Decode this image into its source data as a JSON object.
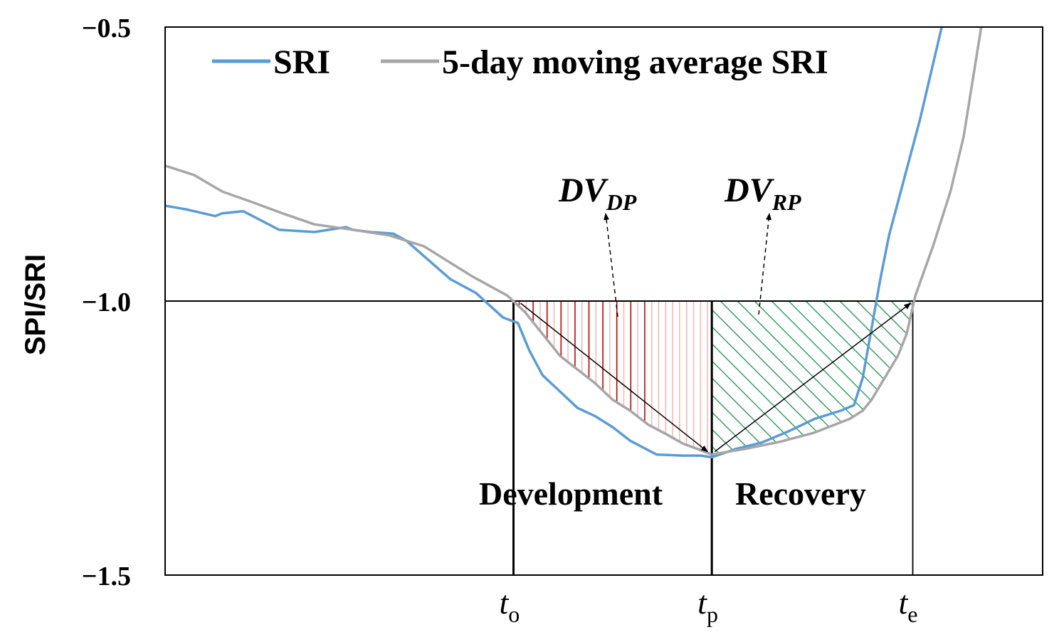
{
  "chart_data": {
    "type": "line",
    "ylabel": "SPI/SRI",
    "xlabel": "",
    "ylim": [
      -1.5,
      -0.5
    ],
    "xlim": [
      0,
      100
    ],
    "yticks": [
      {
        "value": -0.5,
        "label": "−0.5"
      },
      {
        "value": -1.0,
        "label": "−1.0"
      },
      {
        "value": -1.5,
        "label": "−1.5"
      }
    ],
    "xticks": [
      {
        "value": 39.7,
        "main": "t",
        "sub": "o"
      },
      {
        "value": 62.3,
        "main": "t",
        "sub": "p"
      },
      {
        "value": 85.2,
        "main": "t",
        "sub": "e"
      }
    ],
    "threshold": -1.0,
    "series": [
      {
        "name": "SRI",
        "color": "#5b9bd5",
        "x": [
          0,
          2.5,
          5.7,
          6.5,
          8.9,
          13,
          17,
          20.6,
          21.4,
          23.4,
          26,
          27.5,
          30,
          32.5,
          35.4,
          38.5,
          40.2,
          41.5,
          43,
          45,
          47,
          49,
          51,
          53,
          56,
          59,
          61,
          62.3,
          65,
          68,
          71,
          74,
          77,
          78.5,
          79.5,
          80.5,
          81.5,
          82.5,
          84,
          86,
          88.5
        ],
        "values": [
          -0.826,
          -0.833,
          -0.845,
          -0.84,
          -0.836,
          -0.87,
          -0.874,
          -0.865,
          -0.87,
          -0.874,
          -0.877,
          -0.89,
          -0.925,
          -0.96,
          -0.985,
          -1.03,
          -1.04,
          -1.09,
          -1.135,
          -1.165,
          -1.195,
          -1.21,
          -1.23,
          -1.255,
          -1.28,
          -1.282,
          -1.282,
          -1.285,
          -1.27,
          -1.258,
          -1.238,
          -1.215,
          -1.2,
          -1.19,
          -1.14,
          -1.05,
          -0.96,
          -0.88,
          -0.79,
          -0.67,
          -0.5
        ]
      },
      {
        "name": "5-day moving average SRI",
        "color": "#a6a6a6",
        "x": [
          0,
          3.3,
          6.5,
          10,
          13.4,
          17,
          21.4,
          25.5,
          27.5,
          29.5,
          32,
          35,
          39,
          41,
          43,
          45,
          47,
          49,
          51,
          53,
          55,
          57,
          59,
          61,
          62.3,
          63,
          66,
          70,
          74,
          78,
          79.5,
          80.5,
          82,
          83.5,
          84.5,
          85.5,
          87.5,
          89.5,
          91,
          93
        ],
        "values": [
          -0.753,
          -0.77,
          -0.8,
          -0.82,
          -0.84,
          -0.86,
          -0.87,
          -0.88,
          -0.89,
          -0.9,
          -0.925,
          -0.955,
          -0.99,
          -1.02,
          -1.06,
          -1.1,
          -1.125,
          -1.15,
          -1.18,
          -1.2,
          -1.225,
          -1.242,
          -1.26,
          -1.272,
          -1.28,
          -1.278,
          -1.27,
          -1.257,
          -1.24,
          -1.215,
          -1.2,
          -1.18,
          -1.14,
          -1.1,
          -1.06,
          -0.99,
          -0.9,
          -0.8,
          -0.7,
          -0.5
        ]
      }
    ],
    "regions": [
      {
        "name": "DV_DP",
        "main": "DV",
        "sub": "DP",
        "from": 39.7,
        "to": 62.3,
        "hatch_color": "#c00000",
        "hatch_light": "#f4b8b8"
      },
      {
        "name": "DV_RP",
        "main": "DV",
        "sub": "RP",
        "from": 62.3,
        "to": 85.2,
        "hatch_color": "#2e9a55"
      }
    ],
    "annotations": {
      "development": "Development",
      "recovery": "Recovery"
    },
    "legend_position": "top-left"
  }
}
